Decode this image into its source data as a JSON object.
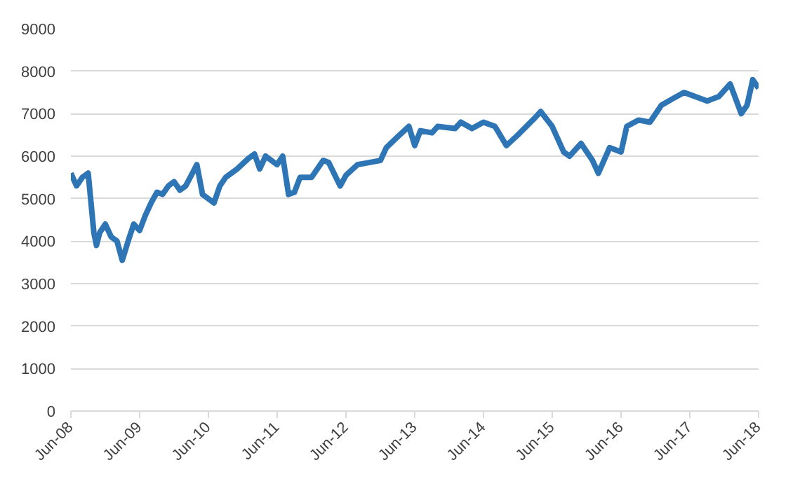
{
  "chart_data": {
    "type": "line",
    "x": [
      "2008-06-01",
      "2008-07-01",
      "2008-08-01",
      "2008-09-01",
      "2008-10-01",
      "2008-10-15",
      "2008-11-01",
      "2008-12-01",
      "2009-01-01",
      "2009-02-01",
      "2009-03-01",
      "2009-04-01",
      "2009-05-01",
      "2009-06-01",
      "2009-07-01",
      "2009-08-01",
      "2009-09-01",
      "2009-10-01",
      "2009-11-01",
      "2009-12-01",
      "2010-01-01",
      "2010-02-01",
      "2010-04-01",
      "2010-05-01",
      "2010-07-01",
      "2010-08-01",
      "2010-09-01",
      "2010-11-01",
      "2011-01-01",
      "2011-02-01",
      "2011-03-01",
      "2011-04-01",
      "2011-06-01",
      "2011-07-01",
      "2011-08-01",
      "2011-09-01",
      "2011-10-01",
      "2011-12-01",
      "2012-02-01",
      "2012-03-01",
      "2012-05-01",
      "2012-06-01",
      "2012-08-01",
      "2012-10-01",
      "2012-12-01",
      "2013-01-01",
      "2013-03-01",
      "2013-05-01",
      "2013-06-01",
      "2013-07-01",
      "2013-09-01",
      "2013-10-01",
      "2014-01-01",
      "2014-02-01",
      "2014-04-01",
      "2014-06-01",
      "2014-08-01",
      "2014-10-01",
      "2014-12-01",
      "2015-03-01",
      "2015-04-01",
      "2015-06-01",
      "2015-08-01",
      "2015-09-01",
      "2015-11-01",
      "2016-01-01",
      "2016-02-01",
      "2016-04-01",
      "2016-06-01",
      "2016-07-01",
      "2016-09-01",
      "2016-11-01",
      "2017-01-01",
      "2017-03-01",
      "2017-05-01",
      "2017-07-01",
      "2017-09-01",
      "2017-11-01",
      "2018-01-01",
      "2018-03-01",
      "2018-04-01",
      "2018-05-01",
      "2018-06-01"
    ],
    "series": [
      {
        "color": "#2e75b6",
        "values": [
          5600,
          5300,
          5500,
          5600,
          4200,
          3900,
          4200,
          4400,
          4100,
          4000,
          3550,
          4000,
          4400,
          4250,
          4600,
          4900,
          5150,
          5100,
          5300,
          5400,
          5200,
          5300,
          5800,
          5100,
          4900,
          5300,
          5500,
          5700,
          5950,
          6050,
          5700,
          6000,
          5800,
          6000,
          5100,
          5150,
          5500,
          5500,
          5900,
          5850,
          5300,
          5550,
          5800,
          5850,
          5900,
          6200,
          6450,
          6700,
          6250,
          6600,
          6550,
          6700,
          6650,
          6800,
          6650,
          6800,
          6700,
          6250,
          6500,
          6900,
          7050,
          6700,
          6100,
          6000,
          6300,
          5900,
          5600,
          6200,
          6100,
          6700,
          6850,
          6800,
          7200,
          7350,
          7500,
          7400,
          7300,
          7400,
          7700,
          7000,
          7200,
          7800,
          7600
        ]
      }
    ],
    "xlim": [
      "2008-06-01",
      "2018-06-01"
    ],
    "xticks": [
      {
        "value": "2008-06-01",
        "label": "Jun-08"
      },
      {
        "value": "2009-06-01",
        "label": "Jun-09"
      },
      {
        "value": "2010-06-01",
        "label": "Jun-10"
      },
      {
        "value": "2011-06-01",
        "label": "Jun-11"
      },
      {
        "value": "2012-06-01",
        "label": "Jun-12"
      },
      {
        "value": "2013-06-01",
        "label": "Jun-13"
      },
      {
        "value": "2014-06-01",
        "label": "Jun-14"
      },
      {
        "value": "2015-06-01",
        "label": "Jun-15"
      },
      {
        "value": "2016-06-01",
        "label": "Jun-16"
      },
      {
        "value": "2017-06-01",
        "label": "Jun-17"
      },
      {
        "value": "2018-06-01",
        "label": "Jun-18"
      }
    ],
    "ylim": [
      0,
      9000
    ],
    "yticks": [
      0,
      1000,
      2000,
      3000,
      4000,
      5000,
      6000,
      7000,
      8000,
      9000
    ],
    "grid": "y",
    "marker": "none",
    "line_style": "solid"
  }
}
